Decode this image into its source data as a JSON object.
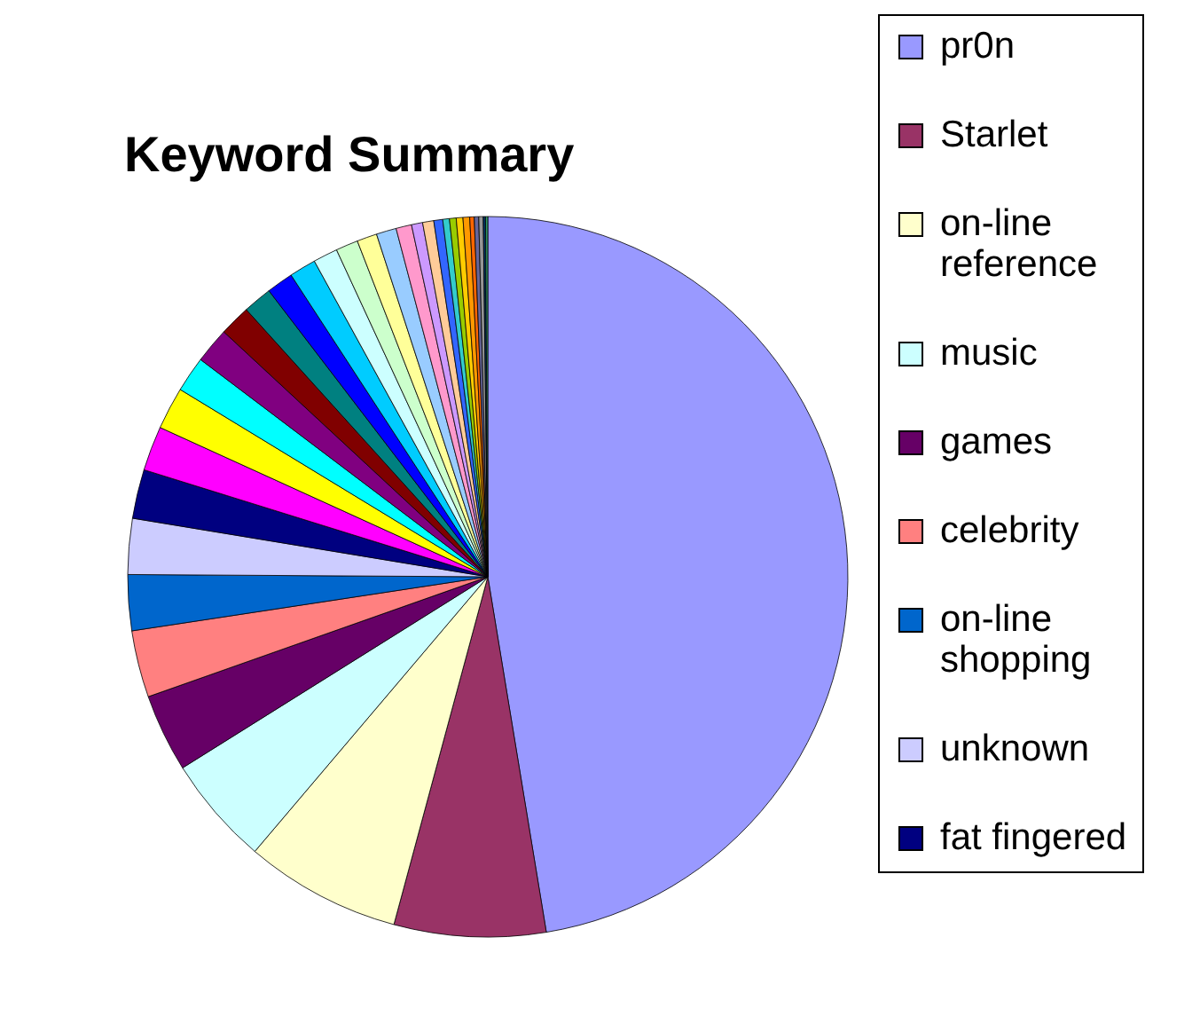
{
  "chart_data": {
    "type": "pie",
    "title": "Keyword Summary",
    "legend": "right",
    "categories": [
      "pr0n",
      "Starlet",
      "on-line reference",
      "music",
      "games",
      "celebrity",
      "on-line shopping",
      "unknown",
      "fat fingered",
      null,
      null,
      null,
      null,
      null,
      null,
      null,
      null,
      null,
      null,
      null,
      null,
      null,
      null,
      null,
      null,
      null,
      null,
      null,
      null,
      null,
      null,
      null,
      null,
      null
    ],
    "values": [
      47.4,
      6.8,
      7.0,
      4.9,
      3.5,
      3.0,
      2.5,
      2.5,
      2.2,
      2.0,
      1.9,
      1.6,
      1.6,
      1.4,
      1.3,
      1.2,
      1.2,
      1.1,
      1.0,
      0.9,
      0.9,
      0.7,
      0.5,
      0.5,
      0.4,
      0.3,
      0.3,
      0.3,
      0.3,
      0.2,
      0.2,
      0.2,
      0.1,
      0.1
    ],
    "colors": [
      "#9999ff",
      "#993366",
      "#ffffcc",
      "#ccffff",
      "#660066",
      "#ff8080",
      "#0066cc",
      "#ccccff",
      "#000080",
      "#ff00ff",
      "#ffff00",
      "#00ffff",
      "#800080",
      "#800000",
      "#008080",
      "#0000ff",
      "#00ccff",
      "#ccffff",
      "#ccffcc",
      "#ffff99",
      "#99ccff",
      "#ff99cc",
      "#cc99ff",
      "#ffcc99",
      "#3366ff",
      "#33cccc",
      "#99cc00",
      "#ffcc00",
      "#ff9900",
      "#ff6600",
      "#666699",
      "#969696",
      "#003366",
      "#339966"
    ]
  }
}
